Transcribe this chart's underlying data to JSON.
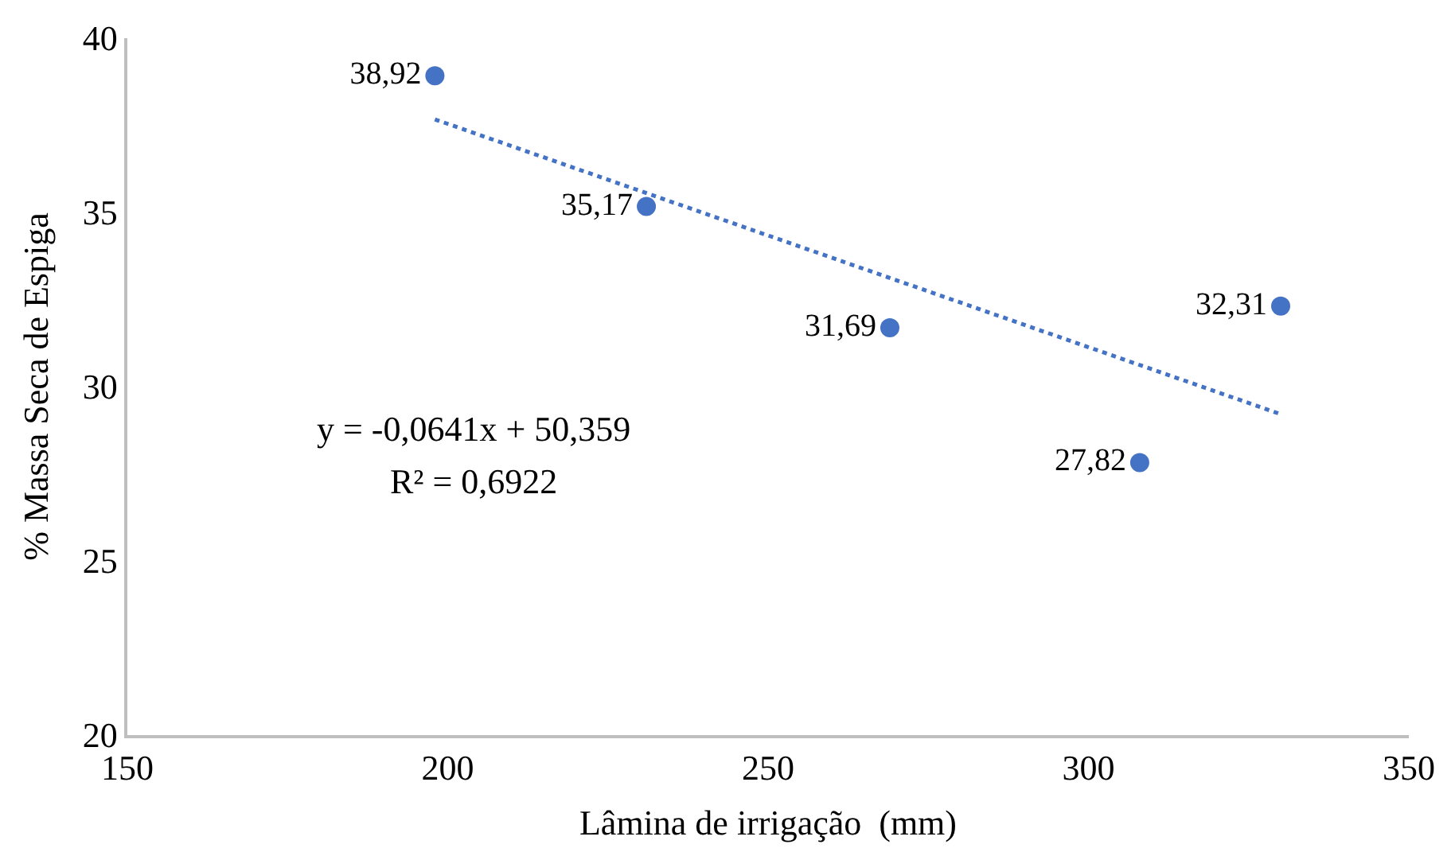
{
  "chart_data": {
    "type": "scatter",
    "xlabel": "Lâmina de irrigação  (mm)",
    "ylabel": "% Massa Seca de Espiga",
    "xlim": [
      150,
      350
    ],
    "xticks": [
      150,
      200,
      250,
      300,
      350
    ],
    "ylim": [
      20,
      40
    ],
    "yticks": [
      20,
      25,
      30,
      35,
      40
    ],
    "marker": "circle",
    "series": [
      {
        "color": "#4472c4",
        "x": [
          198,
          231,
          269,
          308,
          330
        ],
        "values": [
          38.92,
          35.17,
          31.69,
          27.82,
          32.31
        ],
        "value_labels": [
          "38,92",
          "35,17",
          "31,69",
          "27,82",
          "32,31"
        ]
      },
      {
        "type": "line",
        "color": "#4472c4",
        "line_style": "dotted",
        "marker": "none",
        "x": [
          198,
          330
        ],
        "values": [
          37.67,
          29.21
        ]
      }
    ],
    "annotations": [
      "y = -0,0641x + 50,359",
      "R² = 0,6922"
    ]
  }
}
